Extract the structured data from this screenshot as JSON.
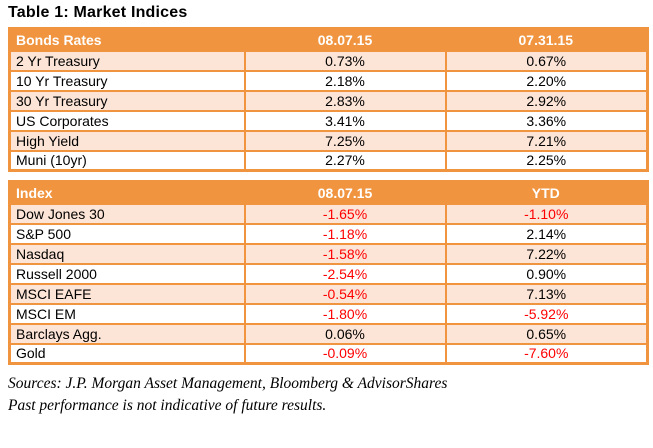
{
  "title": "Table 1: Market Indices",
  "colors": {
    "header_bg": "#F0943F",
    "border": "#F0943F",
    "row_alt_bg": "#FCE4D6",
    "row_bg": "#FFFFFF",
    "header_text": "#FFFFFF",
    "positive_text": "#000000",
    "negative_text": "#FF0000"
  },
  "tables": [
    {
      "name": "bonds-rates",
      "headers": [
        "Bonds Rates",
        "08.07.15",
        "07.31.15"
      ],
      "rows": [
        [
          "2 Yr Treasury",
          "0.73%",
          "0.67%"
        ],
        [
          "10 Yr Treasury",
          "2.18%",
          "2.20%"
        ],
        [
          "30 Yr Treasury",
          "2.83%",
          "2.92%"
        ],
        [
          "US Corporates",
          "3.41%",
          "3.36%"
        ],
        [
          "High Yield",
          "7.25%",
          "7.21%"
        ],
        [
          "Muni (10yr)",
          "2.27%",
          "2.25%"
        ]
      ]
    },
    {
      "name": "index",
      "headers": [
        "Index",
        "08.07.15",
        "YTD"
      ],
      "rows": [
        [
          "Dow Jones 30",
          "-1.65%",
          "-1.10%"
        ],
        [
          "S&P 500",
          "-1.18%",
          "2.14%"
        ],
        [
          "Nasdaq",
          "-1.58%",
          "7.22%"
        ],
        [
          "Russell 2000",
          "-2.54%",
          "0.90%"
        ],
        [
          "MSCI EAFE",
          "-0.54%",
          "7.13%"
        ],
        [
          "MSCI EM",
          "-1.80%",
          "-5.92%"
        ],
        [
          "Barclays Agg.",
          "0.06%",
          "0.65%"
        ],
        [
          "Gold",
          "-0.09%",
          "-7.60%"
        ]
      ]
    }
  ],
  "footer": {
    "sources": "Sources: J.P. Morgan Asset Management, Bloomberg & AdvisorShares",
    "disclaimer": "Past performance is not indicative of future results."
  }
}
